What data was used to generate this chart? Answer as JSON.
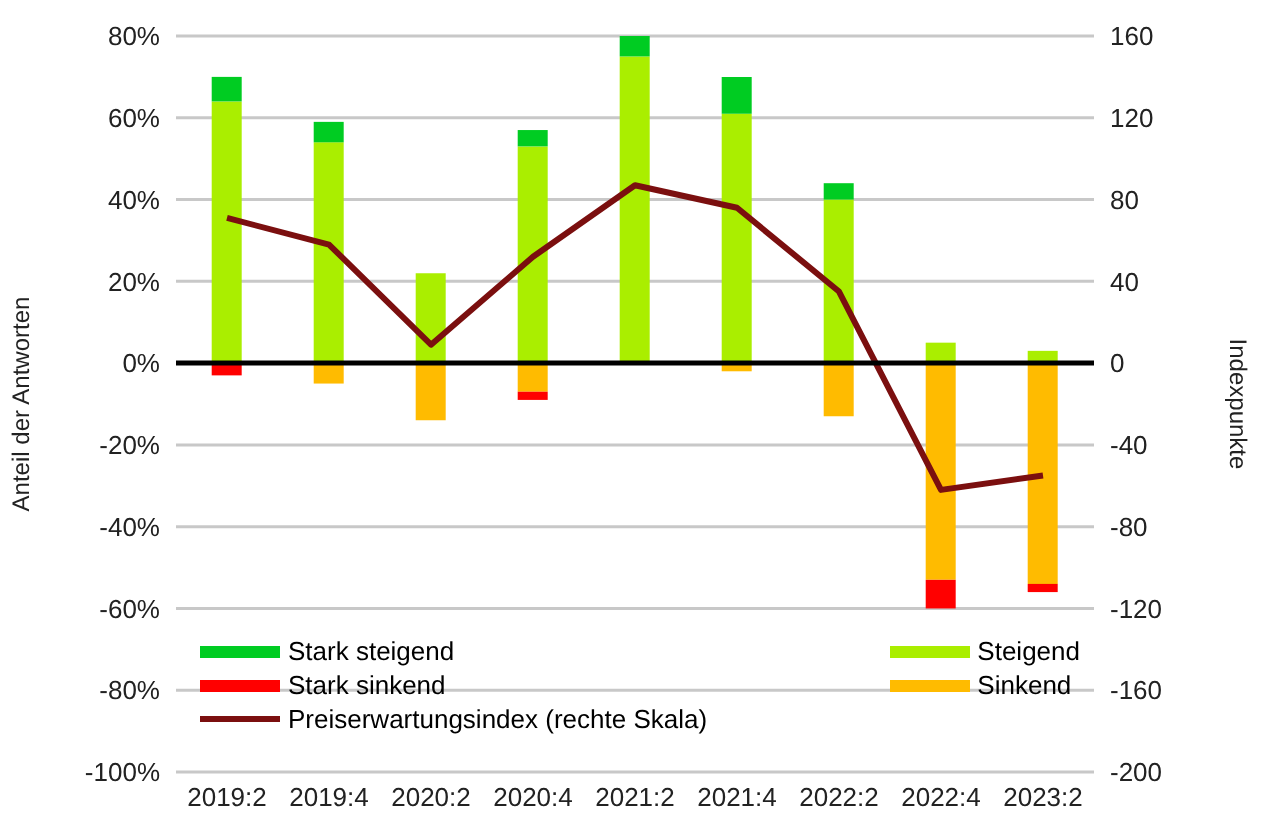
{
  "chart_data": {
    "type": "bar",
    "stacked": true,
    "ylabel": "Anteil der Antworten",
    "y2label": "Indexpunkte",
    "categories": [
      "2019:2",
      "2019:4",
      "2020:2",
      "2020:4",
      "2021:2",
      "2021:4",
      "2022:2",
      "2022:4",
      "2023:2"
    ],
    "series": [
      {
        "name": "Steigend",
        "color": "#aaee00",
        "values": [
          64,
          54,
          22,
          53,
          75,
          61,
          40,
          5,
          3
        ]
      },
      {
        "name": "Stark steigend",
        "color": "#00cc22",
        "values": [
          6,
          5,
          0,
          4,
          5,
          9,
          4,
          0,
          0
        ]
      },
      {
        "name": "Sinkend",
        "color": "#ffbb00",
        "values": [
          0,
          -5,
          -14,
          -7,
          0,
          -2,
          -13,
          -53,
          -54
        ]
      },
      {
        "name": "Stark sinkend",
        "color": "#ff0000",
        "values": [
          -3,
          0,
          0,
          -2,
          0,
          0,
          0,
          -7,
          -2
        ]
      },
      {
        "name": "Preiserwartungsindex (rechte Skala)",
        "type": "line",
        "axis": "y2",
        "color": "#7b0f0f",
        "marker": "none",
        "values": [
          71,
          58,
          9,
          52,
          87,
          76,
          35,
          -62,
          -55
        ]
      }
    ],
    "ylim": [
      -100,
      80
    ],
    "yticks": [
      {
        "value": -100,
        "label": "-100%"
      },
      {
        "value": -80,
        "label": "-80%"
      },
      {
        "value": -60,
        "label": "-60%"
      },
      {
        "value": -40,
        "label": "-40%"
      },
      {
        "value": -20,
        "label": "-20%"
      },
      {
        "value": 0,
        "label": "0%"
      },
      {
        "value": 20,
        "label": "20%"
      },
      {
        "value": 40,
        "label": "40%"
      },
      {
        "value": 60,
        "label": "60%"
      },
      {
        "value": 80,
        "label": "80%"
      }
    ],
    "y2lim": [
      -200,
      160
    ],
    "y2ticks": [
      -200,
      -160,
      -120,
      -80,
      -40,
      0,
      40,
      80,
      120,
      160
    ],
    "ref_lines": [
      {
        "axis": "y",
        "value": 0,
        "color": "#000000"
      }
    ],
    "grid": "y",
    "legend": "bottom"
  }
}
